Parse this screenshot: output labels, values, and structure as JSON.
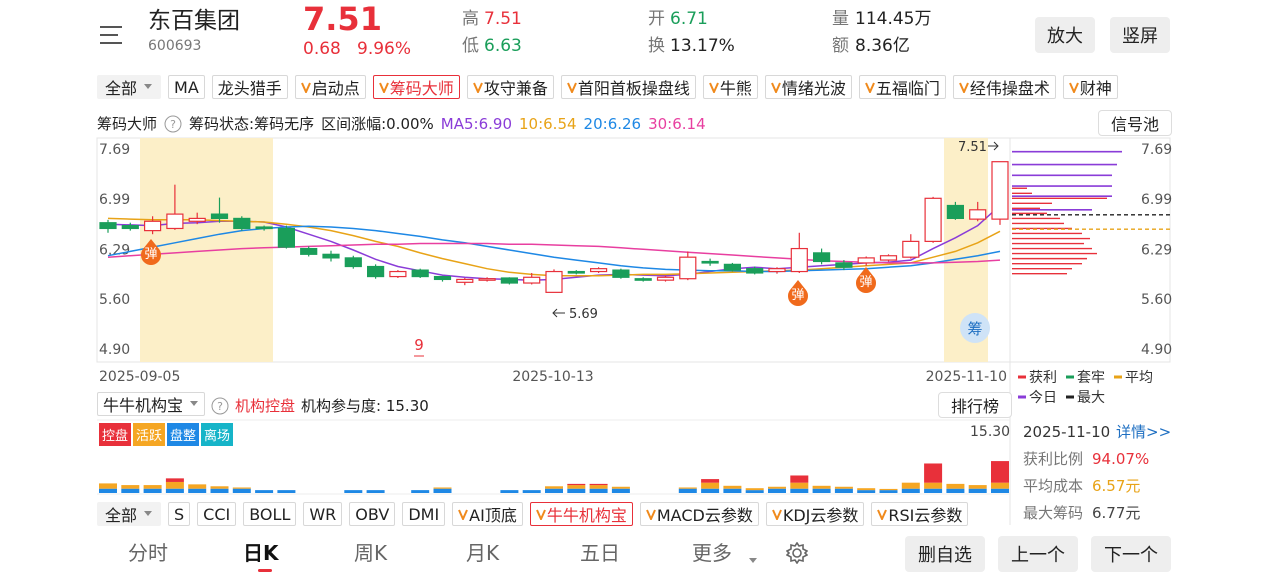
{
  "header": {
    "name": "东百集团",
    "code": "600693",
    "price": "7.51",
    "change": "0.68",
    "change_pct": "9.96%",
    "high_label": "高",
    "high": "7.51",
    "low_label": "低",
    "low": "6.63",
    "open_label": "开",
    "open": "6.71",
    "turnover_label": "换",
    "turnover": "13.17%",
    "volume_label": "量",
    "volume": "114.45万",
    "amount_label": "额",
    "amount": "8.36亿",
    "buttons": [
      "放大",
      "竖屏"
    ]
  },
  "indicator_tabs": {
    "dropdown": "全部",
    "items": [
      "MA",
      "龙头猎手",
      "启动点",
      "筹码大师",
      "攻守兼备",
      "首阳首板操盘线",
      "牛熊",
      "情绪光波",
      "五福临门",
      "经伟操盘术",
      "财神"
    ],
    "active": 3
  },
  "info_row": {
    "title": "筹码大师",
    "status": "筹码状态:筹码无序",
    "range": "区间涨幅:0.00%",
    "ma5": "MA5:6.90",
    "ma10": "10:6.54",
    "ma20": "20:6.26",
    "ma30": "30:6.14",
    "button": "信号池"
  },
  "chart": {
    "type": "candlestick",
    "ylim": [
      4.72,
      7.84
    ],
    "yticks": [
      7.69,
      6.99,
      6.29,
      {
        "value": 5.6,
        "label": "5.60"
      },
      {
        "value": 4.9,
        "label": "4.90"
      }
    ],
    "x_labels": [
      "2025-09-05",
      "2025-10-13",
      "2025-11-10"
    ],
    "candles": {
      "open": [
        6.66,
        6.62,
        6.55,
        6.58,
        6.68,
        6.78,
        6.72,
        6.6,
        6.58,
        6.3,
        6.22,
        6.17,
        6.05,
        5.91,
        6.0,
        5.91,
        5.83,
        5.86,
        5.89,
        5.82,
        5.69,
        5.98,
        5.98,
        6.0,
        5.88,
        5.86,
        5.88,
        6.12,
        6.08,
        6.02,
        5.98,
        5.98,
        6.24,
        6.1,
        6.1,
        6.14,
        6.18,
        6.4,
        6.9,
        6.71,
        6.71
      ],
      "close": [
        6.58,
        6.58,
        6.68,
        6.78,
        6.72,
        6.72,
        6.58,
        6.58,
        6.32,
        6.22,
        6.17,
        6.05,
        5.91,
        5.98,
        5.91,
        5.87,
        5.87,
        5.88,
        5.82,
        5.9,
        5.98,
        5.96,
        6.02,
        5.9,
        5.86,
        5.9,
        6.18,
        6.1,
        6.0,
        5.96,
        6.02,
        6.3,
        6.12,
        6.04,
        6.17,
        6.2,
        6.4,
        7.0,
        6.72,
        6.84,
        7.51
      ],
      "high": [
        6.7,
        6.66,
        6.75,
        7.19,
        6.8,
        7.01,
        6.75,
        6.62,
        6.62,
        6.33,
        6.27,
        6.2,
        6.08,
        6.0,
        6.02,
        5.92,
        5.89,
        5.9,
        5.9,
        5.96,
        6.01,
        6.0,
        6.04,
        6.02,
        5.9,
        5.92,
        6.26,
        6.16,
        6.1,
        6.05,
        6.04,
        6.52,
        6.3,
        6.14,
        6.19,
        6.22,
        6.5,
        7.02,
        6.95,
        6.95,
        7.51
      ],
      "low": [
        6.52,
        6.55,
        6.5,
        6.56,
        6.64,
        6.66,
        6.55,
        6.55,
        6.3,
        6.19,
        6.12,
        6.02,
        5.88,
        5.89,
        5.89,
        5.84,
        5.79,
        5.84,
        5.8,
        5.8,
        5.69,
        5.94,
        5.96,
        5.88,
        5.84,
        5.84,
        5.86,
        6.06,
        5.98,
        5.94,
        5.95,
        5.96,
        6.08,
        6.0,
        6.06,
        6.12,
        6.16,
        6.38,
        6.7,
        6.68,
        6.63
      ]
    },
    "ma_lines": [
      {
        "color": "#8a3cd8",
        "values": [
          6.64,
          6.63,
          6.62,
          6.65,
          6.66,
          6.68,
          6.68,
          6.67,
          6.6,
          6.5,
          6.4,
          6.28,
          6.15,
          6.05,
          5.99,
          5.93,
          5.9,
          5.88,
          5.87,
          5.86,
          5.87,
          5.9,
          5.93,
          5.94,
          5.93,
          5.92,
          5.94,
          5.98,
          6.02,
          6.04,
          6.02,
          6.04,
          6.06,
          6.08,
          6.1,
          6.11,
          6.14,
          6.3,
          6.45,
          6.62,
          6.9
        ]
      },
      {
        "color": "#e8a317",
        "values": [
          6.72,
          6.71,
          6.7,
          6.7,
          6.7,
          6.69,
          6.68,
          6.67,
          6.64,
          6.6,
          6.55,
          6.48,
          6.4,
          6.33,
          6.24,
          6.16,
          6.09,
          6.02,
          5.97,
          5.94,
          5.92,
          5.92,
          5.92,
          5.93,
          5.94,
          5.94,
          5.95,
          5.96,
          5.97,
          5.98,
          5.99,
          6.0,
          6.02,
          6.04,
          6.06,
          6.08,
          6.1,
          6.18,
          6.26,
          6.38,
          6.54
        ]
      },
      {
        "color": "#1e88e5",
        "values": [
          6.2,
          6.26,
          6.32,
          6.38,
          6.44,
          6.5,
          6.55,
          6.58,
          6.6,
          6.61,
          6.6,
          6.58,
          6.55,
          6.51,
          6.47,
          6.42,
          6.38,
          6.33,
          6.28,
          6.23,
          6.18,
          6.14,
          6.1,
          6.06,
          6.03,
          6.01,
          6.0,
          5.99,
          5.99,
          5.98,
          5.98,
          5.99,
          6.0,
          6.01,
          6.02,
          6.04,
          6.06,
          6.1,
          6.15,
          6.2,
          6.26
        ]
      },
      {
        "color": "#e83fa0",
        "values": [
          6.18,
          6.2,
          6.22,
          6.24,
          6.26,
          6.28,
          6.3,
          6.31,
          6.32,
          6.33,
          6.34,
          6.35,
          6.36,
          6.36,
          6.37,
          6.37,
          6.37,
          6.37,
          6.36,
          6.36,
          6.35,
          6.34,
          6.33,
          6.31,
          6.29,
          6.27,
          6.25,
          6.23,
          6.21,
          6.19,
          6.17,
          6.15,
          6.13,
          6.12,
          6.11,
          6.1,
          6.1,
          6.1,
          6.11,
          6.12,
          6.14
        ]
      }
    ],
    "annotations": {
      "high": "7.51",
      "low": "5.69"
    },
    "markers": [
      "弹",
      "弹",
      "弹",
      "9",
      "筹"
    ],
    "chips": {
      "color": "#e8303a",
      "prices": [
        5.95,
        6.02,
        6.09,
        6.16,
        6.23,
        6.3,
        6.37,
        6.44,
        6.51,
        6.58,
        6.65,
        6.72,
        6.79,
        6.86,
        6.93,
        7.0,
        7.07,
        7.14
      ],
      "amounts": [
        55,
        60,
        70,
        75,
        85,
        80,
        72,
        78,
        70,
        60,
        52,
        48,
        35,
        28,
        40,
        95,
        20,
        15
      ]
    },
    "today_chips": {
      "color": "#8a3cd8",
      "prices": [
        7.65,
        7.47,
        7.32,
        7.17,
        7.03,
        6.84
      ],
      "amounts": [
        110,
        105,
        100,
        100,
        100,
        80
      ]
    },
    "avg_line": {
      "value": 6.57,
      "color": "#e8a317"
    },
    "max_line": {
      "value": 6.77,
      "color": "#222222"
    },
    "chip_legend": [
      {
        "name": "获利",
        "color": "#e8303a"
      },
      {
        "name": "套牢",
        "color": "#1a9e5a"
      },
      {
        "name": "平均",
        "color": "#e8a317"
      },
      {
        "name": "今日",
        "color": "#8a3cd8"
      },
      {
        "name": "最大",
        "color": "#222222"
      }
    ]
  },
  "institution": {
    "dropdown": "牛牛机构宝",
    "title": "机构控盘",
    "participation": "机构参与度: 15.30",
    "button": "排行榜",
    "max_label": "15.30",
    "tags": [
      {
        "text": "控盘",
        "color": "#e8303a"
      },
      {
        "text": "活跃",
        "color": "#f5a623"
      },
      {
        "text": "盘整",
        "color": "#1e88e5"
      },
      {
        "text": "离场",
        "color": "#16b4c8"
      }
    ],
    "ylim": [
      0,
      20
    ],
    "series": [
      {
        "color": "#1e88e5",
        "values": [
          1.8,
          1.8,
          1.8,
          1.8,
          1.8,
          1.8,
          1.8,
          1.2,
          1.2,
          0,
          0,
          1.2,
          1.2,
          0,
          1.2,
          1.8,
          0,
          0,
          1.2,
          1.2,
          1.8,
          1.8,
          1.8,
          1.8,
          0,
          0,
          1.8,
          1.8,
          1.8,
          1.2,
          1.8,
          1.8,
          1.8,
          1.8,
          1.2,
          1.2,
          1.8,
          1.8,
          1.8,
          1.8,
          1.8
        ]
      },
      {
        "color": "#f5a623",
        "values": [
          2.2,
          1.5,
          1.5,
          2.8,
          1.8,
          1.0,
          0.5,
          0,
          0,
          0,
          0,
          0,
          0,
          0,
          0,
          0.5,
          0,
          0,
          0,
          0,
          1.0,
          1.5,
          1.5,
          0.8,
          0,
          0,
          0.5,
          2.5,
          1.2,
          0.8,
          0.8,
          2.5,
          1.2,
          0.8,
          0.8,
          0.5,
          2.5,
          2.5,
          2.0,
          1.5,
          2.5
        ]
      },
      {
        "color": "#e8303a",
        "values": [
          0,
          0,
          0,
          1.5,
          0,
          0,
          0,
          0,
          0,
          0,
          0,
          0,
          0,
          0,
          0,
          0,
          0,
          0,
          0,
          0,
          0,
          0.5,
          0.5,
          0,
          0,
          0,
          0,
          1.5,
          0,
          0,
          0,
          3.0,
          0,
          0,
          0,
          0,
          0,
          8.0,
          0,
          0,
          9.0
        ]
      }
    ]
  },
  "side_panel": {
    "date": "2025-11-10",
    "link": "详情>>",
    "rows": [
      {
        "label": "获利比例",
        "value": "94.07%"
      },
      {
        "label": "平均成本",
        "value": "6.57元"
      },
      {
        "label": "最大筹码",
        "value": "6.77元"
      }
    ]
  },
  "bottom_tabs": {
    "dropdown": "全部",
    "items": [
      "S",
      "CCI",
      "BOLL",
      "WR",
      "OBV",
      "DMI",
      "AI顶底",
      "牛牛机构宝",
      "MACD云参数",
      "KDJ云参数",
      "RSI云参数"
    ],
    "active": 7
  },
  "nav": {
    "items": [
      "分时",
      "日K",
      "周K",
      "月K",
      "五日",
      "更多"
    ],
    "active": 1,
    "buttons": [
      "删自选",
      "上一个",
      "下一个"
    ]
  }
}
